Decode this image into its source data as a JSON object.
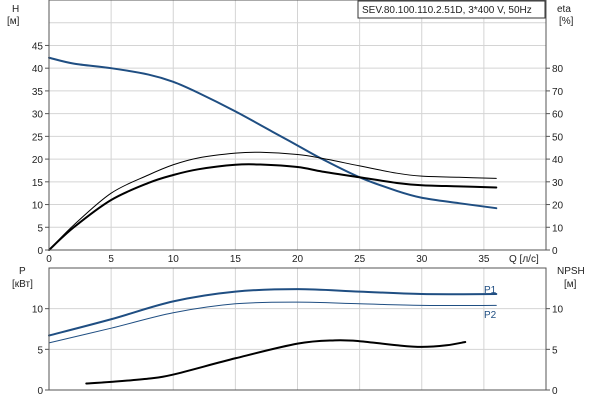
{
  "chart_data": [
    {
      "type": "line",
      "title": "SEV.80.100.110.2.51D, 3*400 V, 50Hz",
      "xlabel": "Q [л/с]",
      "ylabel_left": "H",
      "ylabel_left_unit": "[м]",
      "ylabel_right": "eta",
      "ylabel_right_unit": "[%]",
      "xlim": [
        0,
        40
      ],
      "ylim_left": [
        0,
        55
      ],
      "ylim_right": [
        0,
        110
      ],
      "xticks": [
        0,
        5,
        10,
        15,
        20,
        25,
        30,
        35
      ],
      "yticks_left": [
        0,
        5,
        10,
        15,
        20,
        25,
        30,
        35,
        40,
        45
      ],
      "yticks_right": [
        0,
        10,
        20,
        30,
        40,
        50,
        60,
        70,
        80
      ],
      "grid": true,
      "series": [
        {
          "name": "H",
          "axis": "left",
          "color": "#1f4e82",
          "width": 2,
          "x": [
            0,
            2,
            5,
            8,
            10,
            12,
            15,
            18,
            20,
            22,
            25,
            28,
            30,
            33,
            36
          ],
          "y": [
            42.3,
            41,
            40,
            38.6,
            37,
            34.6,
            30.5,
            26,
            23,
            20,
            16,
            13,
            11.5,
            10.3,
            9.2
          ]
        },
        {
          "name": "eta",
          "axis": "right",
          "color": "#000000",
          "width": 2,
          "x": [
            0,
            2,
            5,
            8,
            10,
            12,
            15,
            17,
            20,
            22,
            25,
            28,
            30,
            33,
            36
          ],
          "y": [
            0,
            10,
            22,
            29.5,
            33,
            35.5,
            37.5,
            37.6,
            36.5,
            34.5,
            32,
            29.5,
            28.5,
            28,
            27.5
          ]
        },
        {
          "name": "eta hydraulic",
          "axis": "right",
          "color": "#000000",
          "width": 1,
          "x": [
            0,
            2,
            5,
            8,
            10,
            12,
            15,
            17,
            20,
            22,
            25,
            28,
            30,
            33,
            36
          ],
          "y": [
            0,
            11,
            25,
            33,
            37.5,
            40.5,
            42.6,
            43,
            42,
            40.3,
            37,
            33.8,
            32.5,
            32,
            31.5
          ]
        }
      ]
    },
    {
      "type": "line",
      "xlim": [
        0,
        40
      ],
      "ylabel_left": "P",
      "ylabel_left_unit": "[кВт]",
      "ylabel_right": "NPSH",
      "ylabel_right_unit": "[м]",
      "ylim_left": [
        0,
        15
      ],
      "ylim_right": [
        0,
        15
      ],
      "yticks_left": [
        0,
        5,
        10
      ],
      "yticks_right": [
        0,
        5,
        10
      ],
      "grid": true,
      "series": [
        {
          "name": "P1",
          "axis": "left",
          "color": "#1f4e82",
          "width": 2,
          "x": [
            0,
            5,
            10,
            15,
            20,
            25,
            30,
            36
          ],
          "y": [
            6.7,
            8.7,
            10.9,
            12.1,
            12.4,
            12.1,
            11.8,
            11.8
          ]
        },
        {
          "name": "P2",
          "axis": "left",
          "color": "#1f4e82",
          "width": 1,
          "x": [
            0,
            5,
            10,
            15,
            20,
            25,
            30,
            36
          ],
          "y": [
            5.8,
            7.6,
            9.5,
            10.6,
            10.8,
            10.6,
            10.4,
            10.4
          ]
        },
        {
          "name": "NPSH",
          "axis": "right",
          "color": "#000000",
          "width": 2,
          "x": [
            3,
            5,
            8,
            10,
            15,
            20,
            23,
            25,
            28,
            30,
            32,
            33.5
          ],
          "y": [
            0.8,
            1.0,
            1.4,
            1.9,
            3.9,
            5.7,
            6.1,
            6.0,
            5.5,
            5.3,
            5.5,
            5.9
          ]
        }
      ]
    }
  ]
}
